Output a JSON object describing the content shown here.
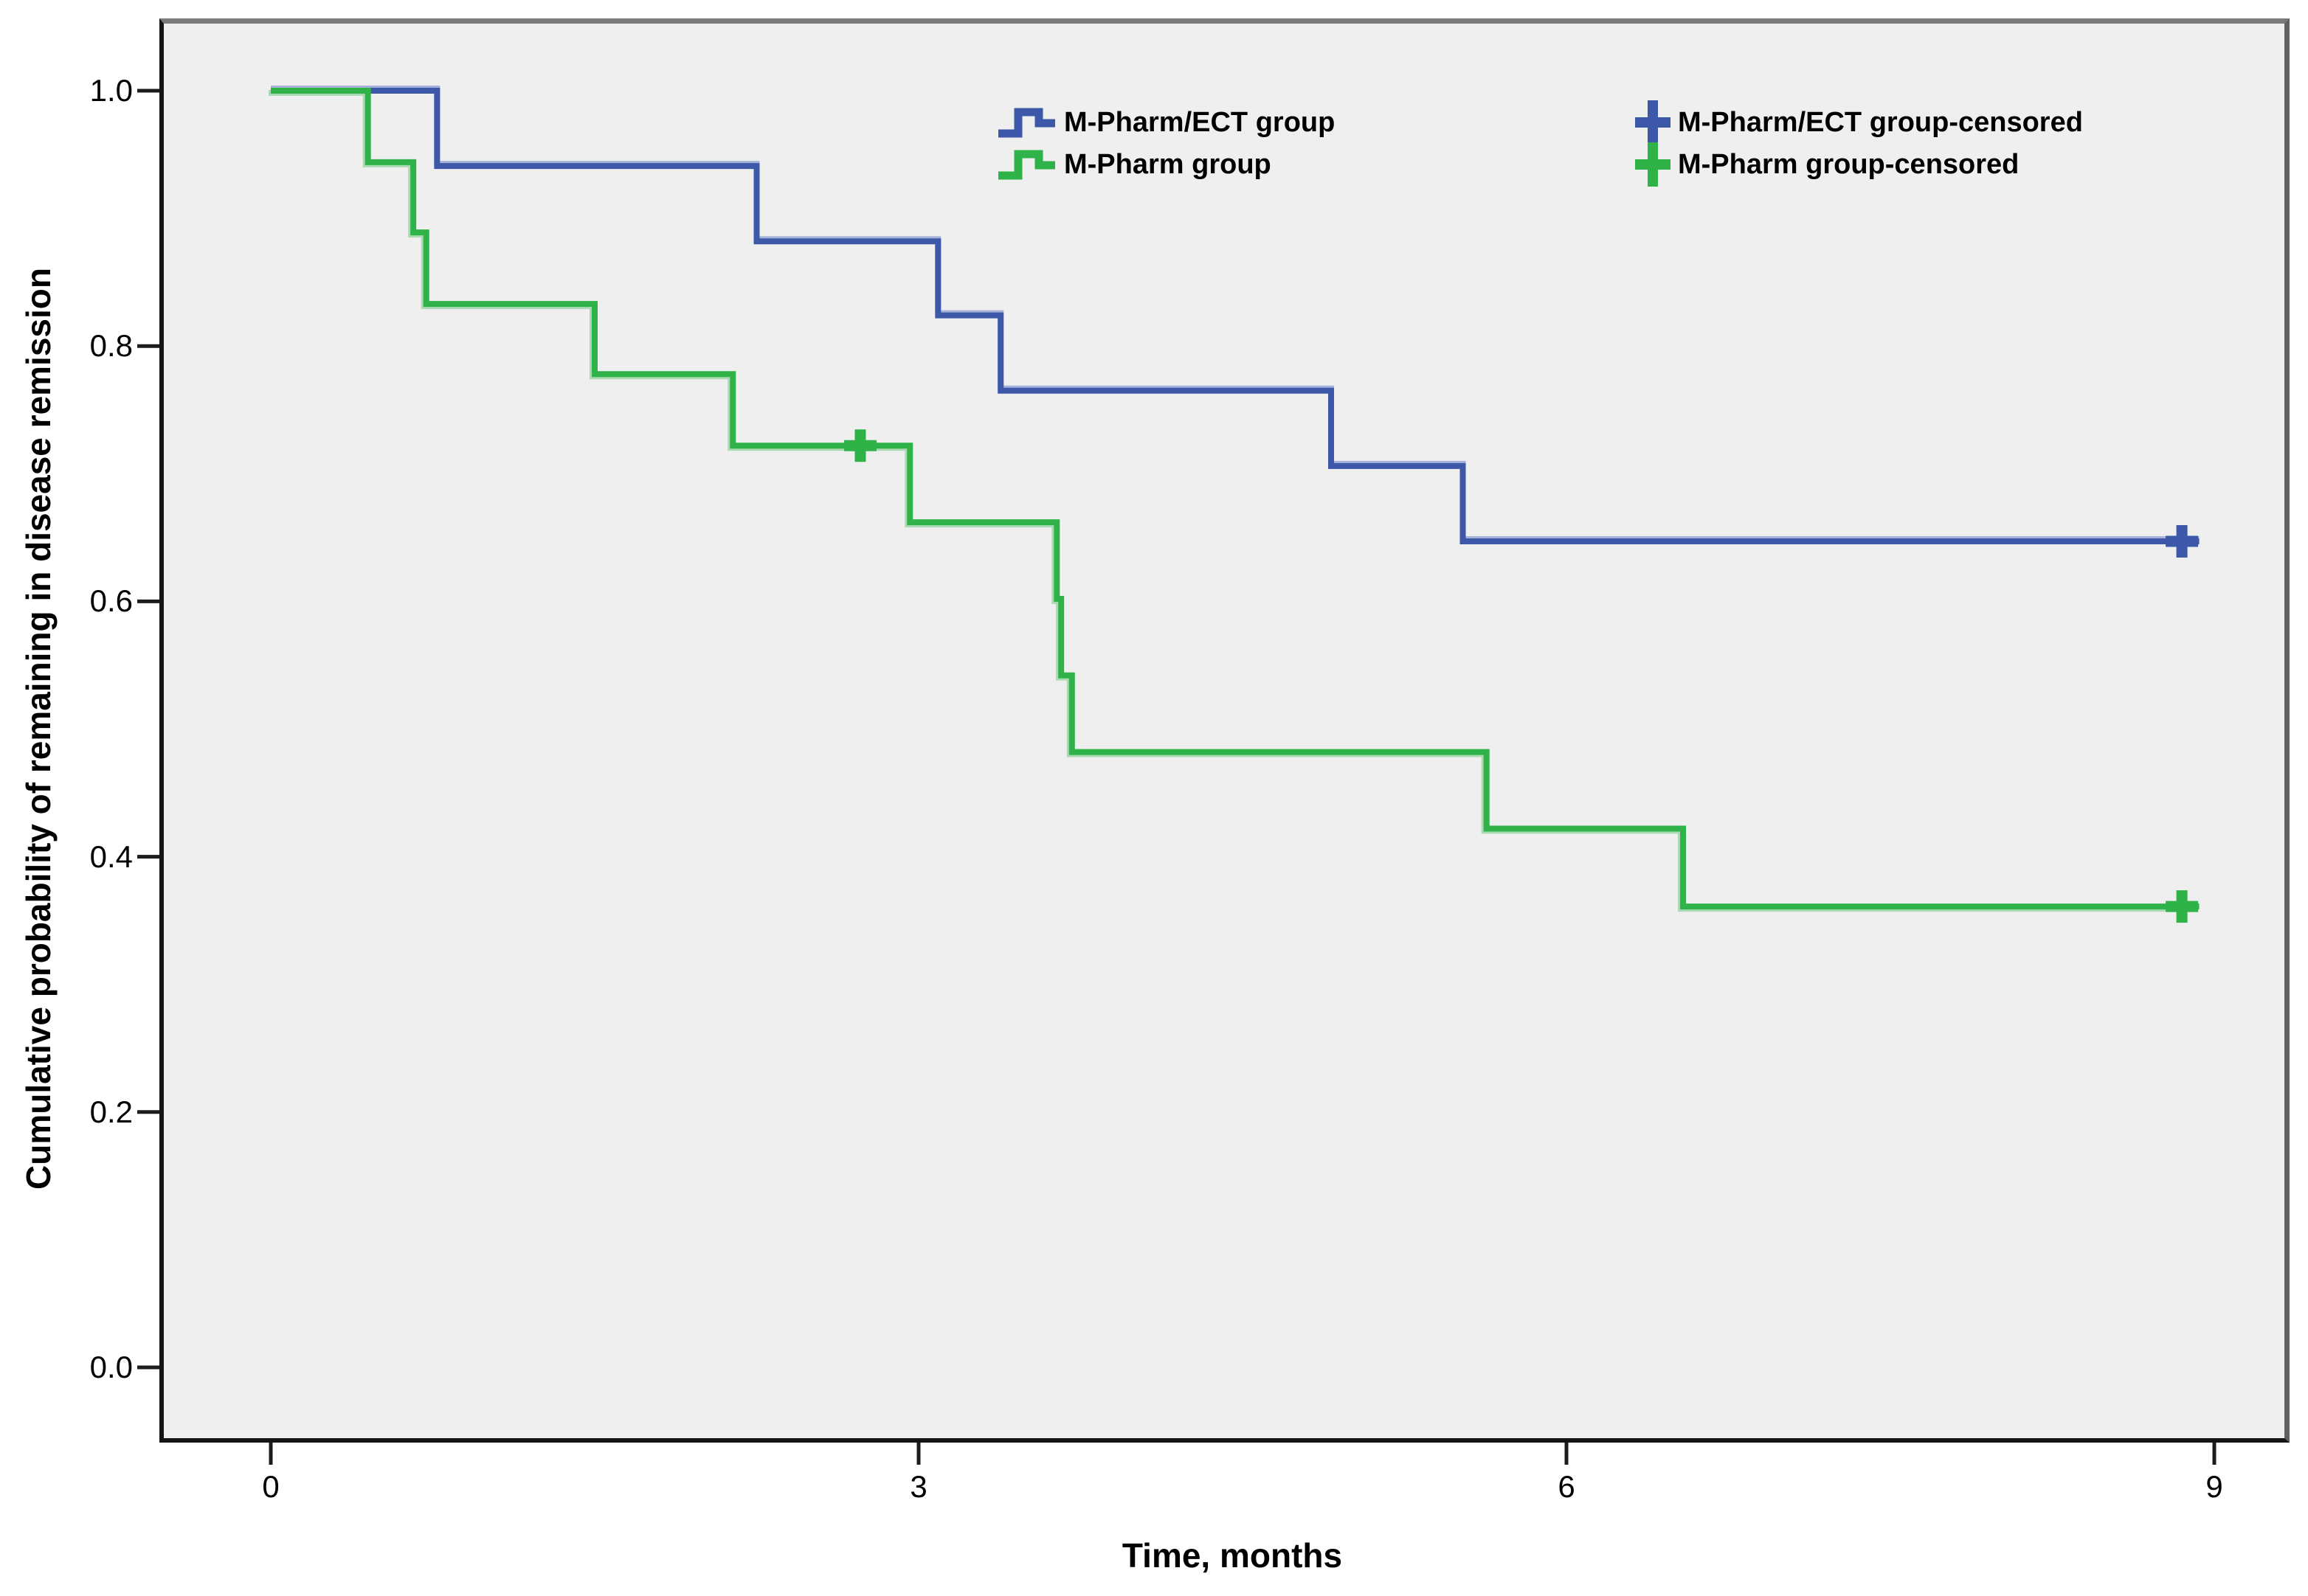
{
  "figure": {
    "x_axis_title": "Time, months",
    "y_axis_title": "Cumulative probability of remaining in disease remission"
  },
  "legend": {
    "items": [
      {
        "label": "M-Pharm/ECT group",
        "glyph": "step-line-icon",
        "color": "#3d58a8"
      },
      {
        "label": "M-Pharm group",
        "glyph": "step-line-icon",
        "color": "#2fb348"
      },
      {
        "label": "M-Pharm/ECT group-censored",
        "glyph": "plus-icon",
        "color": "#3d58a8"
      },
      {
        "label": "M-Pharm group-censored",
        "glyph": "plus-icon",
        "color": "#2fb348"
      }
    ]
  },
  "chart_data": {
    "type": "line",
    "subtype": "kaplan-meier-step",
    "title": "",
    "xlabel": "Time, months",
    "ylabel": "Cumulative probability of remaining in disease remission",
    "xlim": [
      0,
      9
    ],
    "ylim": [
      0.0,
      1.0
    ],
    "x_tick_values": [
      0,
      3,
      6,
      9
    ],
    "x_tick_labels": [
      "0",
      "3",
      "6",
      "9"
    ],
    "y_tick_values": [
      1.0,
      0.8,
      0.6,
      0.4,
      0.2,
      0.0
    ],
    "y_tick_labels": [
      "1.0",
      "0.8",
      "0.6",
      "0.4",
      "0.2",
      "0.0"
    ],
    "grid": false,
    "legend_position": "top-inside",
    "series": [
      {
        "name": "M-Pharm/ECT group",
        "color": "#3d58a8",
        "steps": [
          {
            "t": 0.0,
            "p": 1.0
          },
          {
            "t": 0.77,
            "p": 0.941
          },
          {
            "t": 2.25,
            "p": 0.882
          },
          {
            "t": 3.09,
            "p": 0.824
          },
          {
            "t": 3.38,
            "p": 0.765
          },
          {
            "t": 4.91,
            "p": 0.706
          },
          {
            "t": 5.52,
            "p": 0.647
          }
        ],
        "end_t": 8.93,
        "censored_t": [
          8.85
        ]
      },
      {
        "name": "M-Pharm group",
        "color": "#2fb348",
        "steps": [
          {
            "t": 0.0,
            "p": 1.0
          },
          {
            "t": 0.45,
            "p": 0.944
          },
          {
            "t": 0.66,
            "p": 0.889
          },
          {
            "t": 0.72,
            "p": 0.833
          },
          {
            "t": 1.5,
            "p": 0.778
          },
          {
            "t": 2.14,
            "p": 0.722
          },
          {
            "t": 2.96,
            "p": 0.662
          },
          {
            "t": 3.64,
            "p": 0.602
          },
          {
            "t": 3.66,
            "p": 0.542
          },
          {
            "t": 3.71,
            "p": 0.482
          },
          {
            "t": 5.63,
            "p": 0.422
          },
          {
            "t": 6.54,
            "p": 0.361
          }
        ],
        "end_t": 8.93,
        "censored_t": [
          2.73,
          8.85
        ]
      }
    ]
  },
  "colors": {
    "plot_background": "#efefef",
    "frame_dark": "#141414",
    "frame_gray": "#7a7a7a",
    "tick": "#1c1c1c",
    "blue": "#3d58a8",
    "green": "#2fb348"
  }
}
